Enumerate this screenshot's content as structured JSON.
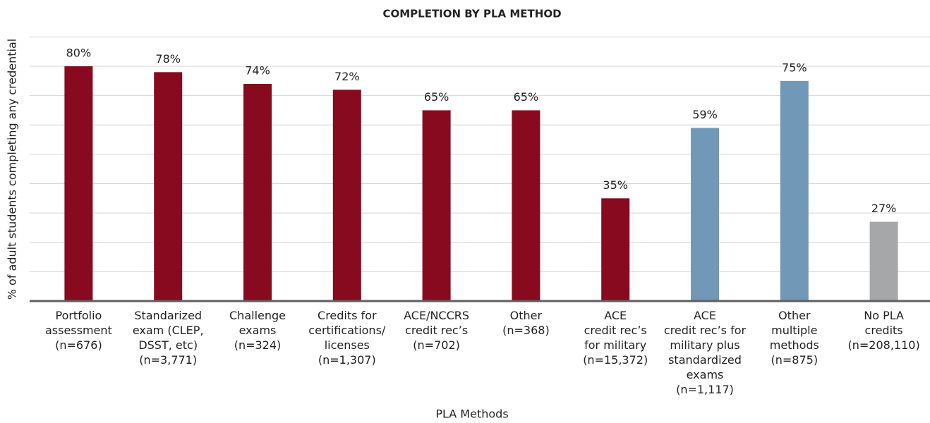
{
  "chart_data": {
    "type": "bar",
    "title": "COMPLETION BY PLA METHOD",
    "x_label": "PLA Methods",
    "y_label": "% of adult students completing any credential",
    "categories": [
      [
        "Portfolio",
        "assessment",
        "(n=676)"
      ],
      [
        "Standarized",
        "exam (CLEP,",
        "DSST, etc)",
        "(n=3,771)"
      ],
      [
        "Challenge",
        "exams",
        "(n=324)"
      ],
      [
        "Credits for",
        "certifications/",
        "licenses",
        "(n=1,307)"
      ],
      [
        "ACE/NCCRS",
        "credit rec’s",
        "(n=702)"
      ],
      [
        "Other",
        "(n=368)"
      ],
      [
        "ACE",
        "credit rec’s",
        "for military",
        "(n=15,372)"
      ],
      [
        "ACE",
        "credit rec’s for",
        "military plus",
        "standardized",
        "exams",
        "(n=1,117)"
      ],
      [
        "Other",
        "multiple",
        "methods",
        "(n=875)"
      ],
      [
        "No PLA",
        "credits",
        "(n=208,110)"
      ]
    ],
    "values": [
      80,
      78,
      74,
      72,
      65,
      65,
      35,
      59,
      75,
      27
    ],
    "value_labels": [
      "80%",
      "78%",
      "74%",
      "72%",
      "65%",
      "65%",
      "35%",
      "59%",
      "75%",
      "27%"
    ],
    "colors": [
      "#870a1f",
      "#870a1f",
      "#870a1f",
      "#870a1f",
      "#870a1f",
      "#870a1f",
      "#870a1f",
      "#7298b8",
      "#7298b8",
      "#a6a7a9"
    ],
    "ylim": [
      0,
      90
    ],
    "yticks": [
      0,
      10,
      20,
      30,
      40,
      50,
      60,
      70,
      80,
      90
    ],
    "grid": true
  }
}
